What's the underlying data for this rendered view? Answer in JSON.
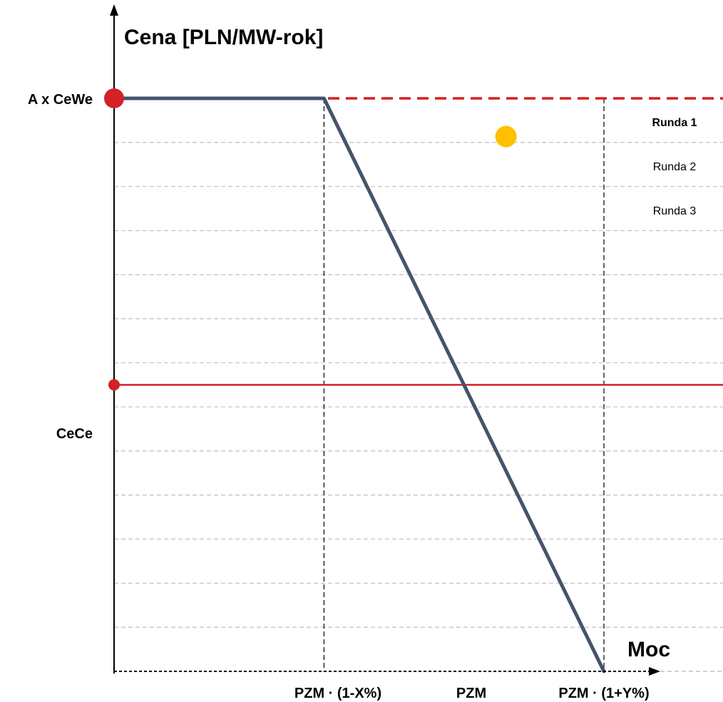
{
  "chart_data": {
    "type": "line",
    "title": "",
    "ylabel": "Cena [PLN/MW-rok]",
    "xlabel": "Moc",
    "x_ticks": [
      "PZM · (1-X%)",
      "PZM",
      "PZM · (1+Y%)"
    ],
    "y_levels": [
      {
        "label": "A x CeWe",
        "value": 0.9
      },
      {
        "label": "CeCe",
        "value": 0.45
      }
    ],
    "ylim": [
      0,
      1
    ],
    "xlim": [
      0,
      1.8
    ],
    "grid": "horizontal dashed",
    "series": [
      {
        "x": [
          0,
          0.6,
          1.4
        ],
        "y": [
          0.9,
          0.9,
          0
        ],
        "style": "solid",
        "color": "#44546a"
      }
    ],
    "reference_lines": [
      {
        "label": "A x CeWe",
        "y": 0.9,
        "style": "dashed",
        "color": "#d42027"
      },
      {
        "label": "CeCe",
        "y": 0.45,
        "style": "solid",
        "color": "#d42027"
      }
    ],
    "verticals": [
      {
        "label": "PZM · (1-X%)",
        "x": 0.6
      },
      {
        "label": "PZM · (1+Y%)",
        "x": 1.4
      }
    ],
    "round_labels": [
      {
        "text": "Runda 1",
        "bold": true
      },
      {
        "text": "Runda 2",
        "bold": false
      },
      {
        "text": "Runda 3",
        "bold": false
      }
    ],
    "points": [
      {
        "label": "A x CeWe",
        "x": 0,
        "y": 0.9,
        "color": "#d42027"
      },
      {
        "label": "CeCe",
        "x": 0,
        "y": 0.45,
        "color": "#d42027"
      },
      {
        "label": "",
        "x": 1.12,
        "y": 0.84,
        "color": "#ffc000"
      }
    ]
  },
  "colors": {
    "curve": "#44546a",
    "red": "#d42027",
    "yellow": "#ffc000",
    "grid": "#bfbfbf",
    "axis": "#000000"
  }
}
